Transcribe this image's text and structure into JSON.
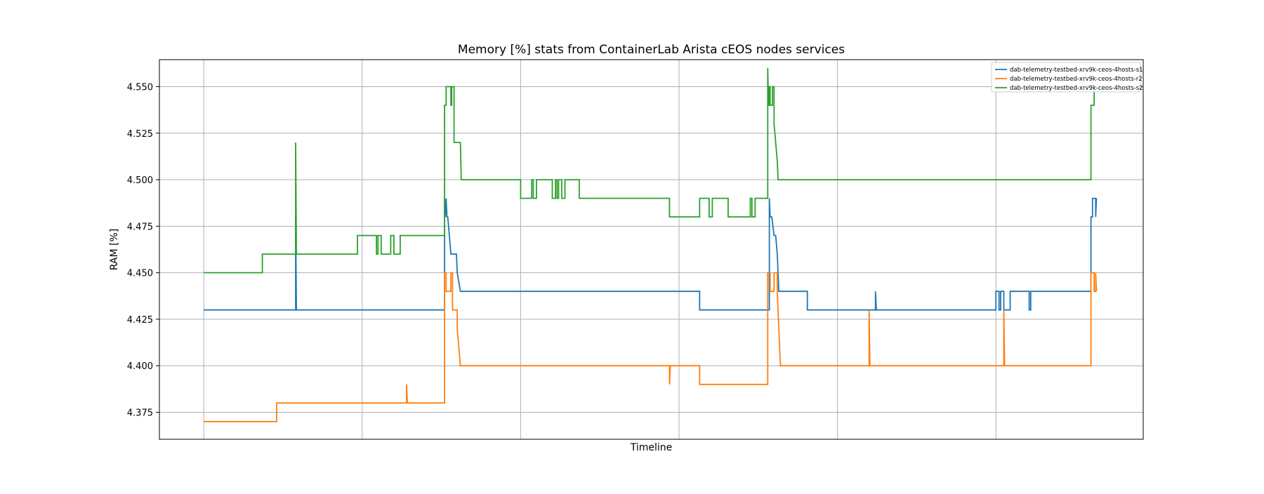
{
  "chart_data": {
    "type": "line",
    "title": "Memory [%] stats from ContainerLab Arista cEOS nodes services",
    "xlabel": "Timeline",
    "ylabel": "RAM [%]",
    "xlim": [
      -0.28,
      5.93
    ],
    "ylim": [
      4.3605,
      4.5645
    ],
    "yticks": [
      "4.375",
      "4.400",
      "4.425",
      "4.450",
      "4.475",
      "4.500",
      "4.525",
      "4.550"
    ],
    "grid": true,
    "x_vertical_gridlines": [
      0,
      1,
      2,
      3,
      4,
      5
    ],
    "x_ticklabels": "none",
    "legend_placement": "top-right",
    "colors": {
      "s1": "#1f77b4",
      "r2": "#ff7f0e",
      "s2": "#2ca02c",
      "grid": "#b0b0b0"
    },
    "series": [
      {
        "name": "dab-telemetry-testbed-xrv9k-ceos-4hosts-s1",
        "color": "#1f77b4",
        "x": [
          0,
          0.58,
          0.58,
          0.585,
          1.52,
          1.52,
          1.525,
          1.53,
          1.535,
          1.54,
          1.55,
          1.56,
          1.57,
          1.58,
          1.595,
          1.6,
          1.62,
          1.625,
          3.13,
          3.13,
          3.57,
          3.57,
          3.575,
          3.585,
          3.6,
          3.61,
          3.62,
          3.625,
          3.63,
          3.81,
          3.81,
          4.24,
          4.24,
          4.245,
          5.0,
          5.0,
          5.02,
          5.02,
          5.03,
          5.03,
          5.05,
          5.05,
          5.09,
          5.09,
          5.21,
          5.21,
          5.22,
          5.22,
          5.23,
          5.23,
          5.6,
          5.6,
          5.61,
          5.61,
          5.63,
          5.63,
          5.635
        ],
        "y": [
          4.43,
          4.43,
          4.48,
          4.43,
          4.43,
          4.49,
          4.48,
          4.49,
          4.48,
          4.48,
          4.47,
          4.46,
          4.46,
          4.46,
          4.46,
          4.45,
          4.44,
          4.44,
          4.44,
          4.43,
          4.43,
          4.49,
          4.48,
          4.48,
          4.47,
          4.47,
          4.46,
          4.45,
          4.44,
          4.44,
          4.43,
          4.43,
          4.44,
          4.43,
          4.43,
          4.44,
          4.44,
          4.43,
          4.43,
          4.44,
          4.44,
          4.43,
          4.43,
          4.44,
          4.44,
          4.43,
          4.43,
          4.44,
          4.44,
          4.44,
          4.44,
          4.48,
          4.48,
          4.49,
          4.49,
          4.48,
          4.49
        ]
      },
      {
        "name": "dab-telemetry-testbed-xrv9k-ceos-4hosts-r2",
        "color": "#ff7f0e",
        "x": [
          0,
          0.46,
          0.46,
          1.28,
          1.28,
          1.285,
          1.52,
          1.52,
          1.53,
          1.53,
          1.56,
          1.56,
          1.57,
          1.57,
          1.6,
          1.6,
          1.62,
          2.94,
          2.94,
          2.945,
          3.13,
          3.13,
          3.56,
          3.56,
          3.575,
          3.575,
          3.6,
          3.6,
          3.62,
          3.62,
          3.63,
          3.64,
          4.2,
          4.2,
          4.205,
          5.05,
          5.05,
          5.055,
          5.6,
          5.6,
          5.62,
          5.62,
          5.63,
          5.63,
          5.635
        ],
        "y": [
          4.37,
          4.37,
          4.38,
          4.38,
          4.39,
          4.38,
          4.38,
          4.45,
          4.45,
          4.44,
          4.44,
          4.45,
          4.45,
          4.43,
          4.43,
          4.42,
          4.4,
          4.4,
          4.39,
          4.4,
          4.4,
          4.39,
          4.39,
          4.45,
          4.45,
          4.44,
          4.44,
          4.45,
          4.45,
          4.44,
          4.42,
          4.4,
          4.4,
          4.43,
          4.4,
          4.4,
          4.43,
          4.4,
          4.4,
          4.45,
          4.45,
          4.44,
          4.44,
          4.45,
          4.44
        ]
      },
      {
        "name": "dab-telemetry-testbed-xrv9k-ceos-4hosts-s2",
        "color": "#2ca02c",
        "x": [
          0,
          0.37,
          0.37,
          0.58,
          0.58,
          0.585,
          0.97,
          0.97,
          1.09,
          1.09,
          1.1,
          1.1,
          1.12,
          1.12,
          1.18,
          1.18,
          1.2,
          1.2,
          1.24,
          1.24,
          1.25,
          1.25,
          1.52,
          1.52,
          1.53,
          1.53,
          1.56,
          1.56,
          1.565,
          1.565,
          1.58,
          1.58,
          1.58,
          1.62,
          1.625,
          2.0,
          2.0,
          2.07,
          2.07,
          2.08,
          2.08,
          2.1,
          2.1,
          2.2,
          2.2,
          2.22,
          2.22,
          2.23,
          2.23,
          2.24,
          2.24,
          2.26,
          2.26,
          2.28,
          2.28,
          2.37,
          2.37,
          2.94,
          2.94,
          3.13,
          3.13,
          3.19,
          3.19,
          3.21,
          3.21,
          3.31,
          3.31,
          3.45,
          3.45,
          3.46,
          3.46,
          3.48,
          3.48,
          3.56,
          3.56,
          3.565,
          3.57,
          3.57,
          3.575,
          3.575,
          3.59,
          3.59,
          3.6,
          3.6,
          3.61,
          3.62,
          3.625,
          3.63,
          5.6,
          5.6,
          5.62,
          5.62,
          5.635
        ],
        "y": [
          4.45,
          4.45,
          4.46,
          4.46,
          4.52,
          4.46,
          4.46,
          4.47,
          4.47,
          4.46,
          4.46,
          4.47,
          4.47,
          4.46,
          4.46,
          4.47,
          4.47,
          4.46,
          4.46,
          4.47,
          4.47,
          4.47,
          4.47,
          4.54,
          4.54,
          4.55,
          4.55,
          4.54,
          4.54,
          4.55,
          4.55,
          4.53,
          4.52,
          4.52,
          4.5,
          4.5,
          4.49,
          4.49,
          4.5,
          4.5,
          4.49,
          4.49,
          4.5,
          4.5,
          4.49,
          4.49,
          4.5,
          4.5,
          4.49,
          4.49,
          4.5,
          4.5,
          4.49,
          4.49,
          4.5,
          4.5,
          4.49,
          4.49,
          4.48,
          4.48,
          4.49,
          4.49,
          4.48,
          4.48,
          4.49,
          4.49,
          4.48,
          4.48,
          4.49,
          4.49,
          4.48,
          4.48,
          4.49,
          4.49,
          4.56,
          4.54,
          4.54,
          4.55,
          4.55,
          4.54,
          4.54,
          4.55,
          4.55,
          4.53,
          4.52,
          4.51,
          4.5,
          4.5,
          4.5,
          4.54,
          4.54,
          4.55,
          4.55
        ]
      }
    ]
  }
}
